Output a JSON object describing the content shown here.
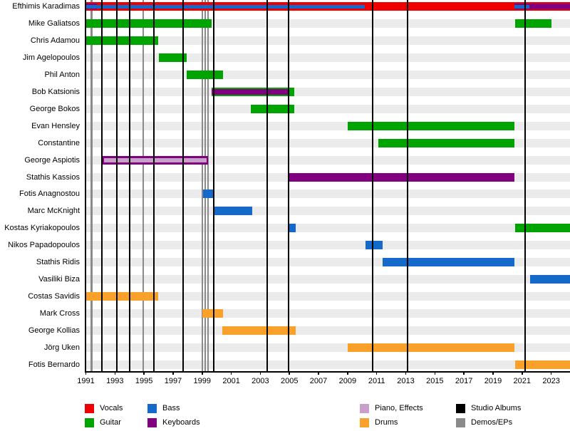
{
  "chart_data": {
    "type": "timeline",
    "title": "",
    "x_axis": {
      "min": 1991,
      "max": 2024.35,
      "tick_years": [
        1991,
        1993,
        1995,
        1997,
        1999,
        2001,
        2003,
        2005,
        2007,
        2009,
        2011,
        2013,
        2015,
        2017,
        2019,
        2021,
        2023
      ]
    },
    "roles": {
      "vocals": "#ee0000",
      "guitar": "#00a400",
      "bass": "#1569c8",
      "keyboards": "#800080",
      "piano_effects": "#c9a0c9",
      "drums": "#f9a12b",
      "studio_albums": "#000000",
      "demos_eps": "#8a8a8a"
    },
    "members": [
      {
        "name": "Efthimis Karadimas",
        "bars": [
          {
            "role": "vocals",
            "start": 1991,
            "end": 2024.35,
            "layer": "full"
          },
          {
            "role": "keyboards",
            "start": 1991,
            "end": 1991.75,
            "layer": "mid"
          },
          {
            "role": "bass",
            "start": 1991,
            "end": 2010.2,
            "layer": "inner"
          },
          {
            "role": "keyboards",
            "start": 2020.45,
            "end": 2024.35,
            "layer": "mid"
          },
          {
            "role": "bass",
            "start": 2020.45,
            "end": 2021.5,
            "layer": "inner"
          }
        ]
      },
      {
        "name": "Mike Galiatsos",
        "bars": [
          {
            "role": "guitar",
            "start": 1991,
            "end": 1999.65,
            "layer": "full"
          },
          {
            "role": "guitar",
            "start": 2020.5,
            "end": 2023.0,
            "layer": "full"
          }
        ]
      },
      {
        "name": "Chris Adamou",
        "bars": [
          {
            "role": "guitar",
            "start": 1991,
            "end": 1995.95,
            "layer": "full"
          }
        ]
      },
      {
        "name": "Jim Agelopoulos",
        "bars": [
          {
            "role": "guitar",
            "start": 1996.0,
            "end": 1997.95,
            "layer": "full"
          }
        ]
      },
      {
        "name": "Phil Anton",
        "bars": [
          {
            "role": "guitar",
            "start": 1997.95,
            "end": 2000.45,
            "layer": "full"
          }
        ]
      },
      {
        "name": "Bob Katsionis",
        "bars": [
          {
            "role": "guitar",
            "start": 1999.65,
            "end": 2005.35,
            "layer": "full"
          },
          {
            "role": "keyboards",
            "start": 1999.65,
            "end": 2005.0,
            "layer": "mid"
          }
        ]
      },
      {
        "name": "George Bokos",
        "bars": [
          {
            "role": "guitar",
            "start": 2002.35,
            "end": 2005.35,
            "layer": "full"
          }
        ]
      },
      {
        "name": "Evan Hensley",
        "bars": [
          {
            "role": "guitar",
            "start": 2009.0,
            "end": 2020.45,
            "layer": "full"
          }
        ]
      },
      {
        "name": "Constantine",
        "bars": [
          {
            "role": "guitar",
            "start": 2011.1,
            "end": 2020.45,
            "layer": "full"
          }
        ]
      },
      {
        "name": "George Aspiotis",
        "bars": [
          {
            "role": "keyboards",
            "start": 1992.15,
            "end": 1999.4,
            "layer": "full"
          },
          {
            "role": "piano_effects",
            "start": 1992.25,
            "end": 1999.3,
            "layer": "thin"
          }
        ]
      },
      {
        "name": "Stathis Kassios",
        "bars": [
          {
            "role": "keyboards",
            "start": 2004.9,
            "end": 2020.45,
            "layer": "full"
          }
        ]
      },
      {
        "name": "Fotis Anagnostou",
        "bars": [
          {
            "role": "bass",
            "start": 1999.05,
            "end": 1999.85,
            "layer": "full"
          }
        ]
      },
      {
        "name": "Marc McKnight",
        "bars": [
          {
            "role": "bass",
            "start": 1999.8,
            "end": 2002.45,
            "layer": "full"
          }
        ]
      },
      {
        "name": "Kostas Kyriakopoulos",
        "bars": [
          {
            "role": "bass",
            "start": 2005.0,
            "end": 2005.45,
            "layer": "full"
          },
          {
            "role": "guitar",
            "start": 2020.5,
            "end": 2024.35,
            "layer": "full"
          }
        ]
      },
      {
        "name": "Nikos Papadopoulos",
        "bars": [
          {
            "role": "bass",
            "start": 2010.25,
            "end": 2011.4,
            "layer": "full"
          }
        ]
      },
      {
        "name": "Stathis Ridis",
        "bars": [
          {
            "role": "bass",
            "start": 2011.4,
            "end": 2020.45,
            "layer": "full"
          }
        ]
      },
      {
        "name": "Vasiliki Biza",
        "bars": [
          {
            "role": "bass",
            "start": 2021.55,
            "end": 2024.35,
            "layer": "full"
          }
        ]
      },
      {
        "name": "Costas Savidis",
        "bars": [
          {
            "role": "drums",
            "start": 1991.0,
            "end": 1995.95,
            "layer": "full"
          }
        ]
      },
      {
        "name": "Mark Cross",
        "bars": [
          {
            "role": "drums",
            "start": 1999.0,
            "end": 2000.45,
            "layer": "full"
          }
        ]
      },
      {
        "name": "George Kollias",
        "bars": [
          {
            "role": "drums",
            "start": 2000.4,
            "end": 2005.45,
            "layer": "full"
          }
        ]
      },
      {
        "name": "Jörg Uken",
        "bars": [
          {
            "role": "drums",
            "start": 2009.0,
            "end": 2020.45,
            "layer": "full"
          }
        ]
      },
      {
        "name": "Fotis Bernardo",
        "bars": [
          {
            "role": "drums",
            "start": 2020.5,
            "end": 2024.35,
            "layer": "full"
          }
        ]
      }
    ],
    "events": {
      "studio_albums": [
        1992.1,
        1993.15,
        1994.0,
        1995.7,
        1997.7,
        1999.8,
        2003.45,
        2004.95,
        2010.7,
        2013.1,
        2021.2
      ],
      "demos_eps": [
        1991.4,
        1994.95,
        1999.0,
        1999.2,
        1999.4
      ]
    },
    "legend": [
      {
        "label": "Vocals",
        "key": "vocals"
      },
      {
        "label": "Guitar",
        "key": "guitar"
      },
      {
        "label": "Bass",
        "key": "bass"
      },
      {
        "label": "Keyboards",
        "key": "keyboards"
      },
      {
        "label": "Piano, Effects",
        "key": "piano_effects"
      },
      {
        "label": "Drums",
        "key": "drums"
      },
      {
        "label": "Studio Albums",
        "key": "studio_albums"
      },
      {
        "label": "Demos/EPs",
        "key": "demos_eps"
      }
    ]
  }
}
